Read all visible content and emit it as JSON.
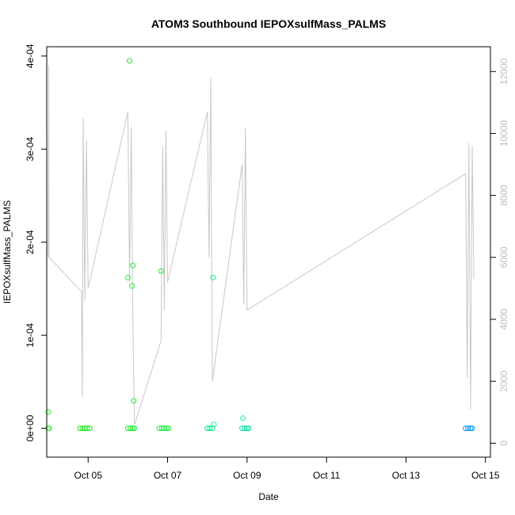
{
  "chart_data": {
    "type": "scatter",
    "title": "ATOM3 Southbound IEPOXsulfMass_PALMS",
    "xlabel": "Date",
    "ylabel": "IEPOXsulfMass_PALMS",
    "xlim": [
      "2017-10-03T23:00",
      "2017-10-15T03:00"
    ],
    "ylim": [
      -3.1e-05,
      0.00041
    ],
    "y2lim": [
      -450,
      12800
    ],
    "x_ticks": [
      {
        "value": "2017-10-05",
        "label": "Oct 05"
      },
      {
        "value": "2017-10-07",
        "label": "Oct 07"
      },
      {
        "value": "2017-10-09",
        "label": "Oct 09"
      },
      {
        "value": "2017-10-11",
        "label": "Oct 11"
      },
      {
        "value": "2017-10-13",
        "label": "Oct 13"
      },
      {
        "value": "2017-10-15",
        "label": "Oct 15"
      }
    ],
    "y_ticks": [
      {
        "value": 0,
        "label": "0e+00"
      },
      {
        "value": 0.0001,
        "label": "1e-04"
      },
      {
        "value": 0.0002,
        "label": "2e-04"
      },
      {
        "value": 0.0003,
        "label": "3e-04"
      },
      {
        "value": 0.0004,
        "label": "4e-04"
      }
    ],
    "y2_ticks": [
      {
        "value": 0,
        "label": "0"
      },
      {
        "value": 2000,
        "label": "2000"
      },
      {
        "value": 4000,
        "label": "4000"
      },
      {
        "value": 6000,
        "label": "6000"
      },
      {
        "value": 8000,
        "label": "8000"
      },
      {
        "value": 10000,
        "label": "10000"
      },
      {
        "value": 12000,
        "label": "12000"
      }
    ],
    "grid": false,
    "series": [
      {
        "type": "scatter",
        "axis": "left",
        "points": [
          {
            "x": "2017-10-04T00:00",
            "y": 1.75e-05,
            "color": "#22ee22"
          },
          {
            "x": "2017-10-04T00:00",
            "y": 0,
            "color": "#22ee22"
          },
          {
            "x": "2017-10-04T00:20",
            "y": 0,
            "color": "#22ee22"
          },
          {
            "x": "2017-10-04T19:00",
            "y": 0,
            "color": "#22ee22"
          },
          {
            "x": "2017-10-04T20:30",
            "y": 0,
            "color": "#22ee22"
          },
          {
            "x": "2017-10-04T22:00",
            "y": 0,
            "color": "#22ee22"
          },
          {
            "x": "2017-10-04T23:30",
            "y": 0,
            "color": "#22ee22"
          },
          {
            "x": "2017-10-05T01:00",
            "y": 0,
            "color": "#22ee22"
          },
          {
            "x": "2017-10-06T00:00",
            "y": 0.000162,
            "color": "#22ee33"
          },
          {
            "x": "2017-10-06T01:00",
            "y": 0.000395,
            "color": "#22ee33"
          },
          {
            "x": "2017-10-06T02:30",
            "y": 0.000153,
            "color": "#22ee33"
          },
          {
            "x": "2017-10-06T03:00",
            "y": 0.000175,
            "color": "#22ee33"
          },
          {
            "x": "2017-10-06T03:30",
            "y": 2.95e-05,
            "color": "#22ee33"
          },
          {
            "x": "2017-10-06T00:00",
            "y": 0,
            "color": "#22ee33"
          },
          {
            "x": "2017-10-06T01:30",
            "y": 0,
            "color": "#22ee33"
          },
          {
            "x": "2017-10-06T03:00",
            "y": 0,
            "color": "#22ee33"
          },
          {
            "x": "2017-10-06T04:00",
            "y": 0,
            "color": "#22ee33"
          },
          {
            "x": "2017-10-06T20:00",
            "y": 0.000169,
            "color": "#22ee44"
          },
          {
            "x": "2017-10-06T19:00",
            "y": 0,
            "color": "#22ee44"
          },
          {
            "x": "2017-10-06T20:30",
            "y": 0,
            "color": "#22ee44"
          },
          {
            "x": "2017-10-06T22:00",
            "y": 0,
            "color": "#22ee44"
          },
          {
            "x": "2017-10-06T23:30",
            "y": 0,
            "color": "#22ee44"
          },
          {
            "x": "2017-10-07T00:30",
            "y": 0,
            "color": "#22ee44"
          },
          {
            "x": "2017-10-08T03:30",
            "y": 0.000162,
            "color": "#11ee77"
          },
          {
            "x": "2017-10-08T04:00",
            "y": 4e-06,
            "color": "#11ee99"
          },
          {
            "x": "2017-10-08T00:00",
            "y": 0,
            "color": "#11ee88"
          },
          {
            "x": "2017-10-08T01:30",
            "y": 0,
            "color": "#11ee88"
          },
          {
            "x": "2017-10-08T03:00",
            "y": 0,
            "color": "#11ee88"
          },
          {
            "x": "2017-10-08T21:30",
            "y": 1.1e-05,
            "color": "#11eeaa"
          },
          {
            "x": "2017-10-08T21:00",
            "y": 0,
            "color": "#11ddaa"
          },
          {
            "x": "2017-10-08T22:30",
            "y": 0,
            "color": "#11ddaa"
          },
          {
            "x": "2017-10-09T00:00",
            "y": 0,
            "color": "#11ddaa"
          },
          {
            "x": "2017-10-09T01:00",
            "y": 0,
            "color": "#11ddaa"
          },
          {
            "x": "2017-10-14T12:00",
            "y": 0,
            "color": "#1199ee"
          },
          {
            "x": "2017-10-14T13:30",
            "y": 0,
            "color": "#1199ee"
          },
          {
            "x": "2017-10-14T15:00",
            "y": 0,
            "color": "#1199ee"
          },
          {
            "x": "2017-10-14T16:00",
            "y": 0,
            "color": "#1199ee"
          }
        ]
      },
      {
        "type": "line",
        "axis": "right",
        "color": "#c8c8c8",
        "points": [
          {
            "x": "2017-10-03T23:50",
            "y": 6000
          },
          {
            "x": "2017-10-04T00:10",
            "y": 12200
          },
          {
            "x": "2017-10-04T00:20",
            "y": 6000
          },
          {
            "x": "2017-10-04T20:00",
            "y": 4900
          },
          {
            "x": "2017-10-04T20:30",
            "y": 1500
          },
          {
            "x": "2017-10-04T21:00",
            "y": 10500
          },
          {
            "x": "2017-10-04T22:00",
            "y": 4600
          },
          {
            "x": "2017-10-04T23:00",
            "y": 9800
          },
          {
            "x": "2017-10-05T00:00",
            "y": 5000
          },
          {
            "x": "2017-10-06T00:00",
            "y": 10700
          },
          {
            "x": "2017-10-06T01:00",
            "y": 5200
          },
          {
            "x": "2017-10-06T02:00",
            "y": 10200
          },
          {
            "x": "2017-10-06T03:00",
            "y": 4000
          },
          {
            "x": "2017-10-06T04:00",
            "y": 600
          },
          {
            "x": "2017-10-06T20:00",
            "y": 3300
          },
          {
            "x": "2017-10-06T21:00",
            "y": 9600
          },
          {
            "x": "2017-10-06T22:00",
            "y": 4300
          },
          {
            "x": "2017-10-06T23:00",
            "y": 10100
          },
          {
            "x": "2017-10-07T00:00",
            "y": 5200
          },
          {
            "x": "2017-10-08T00:00",
            "y": 10700
          },
          {
            "x": "2017-10-08T01:00",
            "y": 6000
          },
          {
            "x": "2017-10-08T02:00",
            "y": 11800
          },
          {
            "x": "2017-10-08T03:00",
            "y": 2000
          },
          {
            "x": "2017-10-08T21:00",
            "y": 9000
          },
          {
            "x": "2017-10-08T22:00",
            "y": 4500
          },
          {
            "x": "2017-10-08T23:00",
            "y": 10200
          },
          {
            "x": "2017-10-09T00:00",
            "y": 4300
          },
          {
            "x": "2017-10-14T12:00",
            "y": 8700
          },
          {
            "x": "2017-10-14T13:00",
            "y": 2100
          },
          {
            "x": "2017-10-14T14:00",
            "y": 9700
          },
          {
            "x": "2017-10-14T15:00",
            "y": 1100
          },
          {
            "x": "2017-10-14T16:00",
            "y": 9600
          },
          {
            "x": "2017-10-14T17:00",
            "y": 5300
          }
        ]
      }
    ]
  }
}
